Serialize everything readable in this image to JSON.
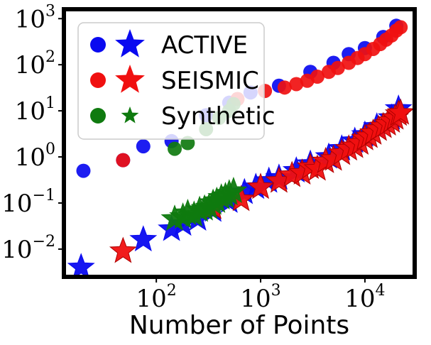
{
  "chart_data": {
    "type": "scatter",
    "xlabel": "Number of Points",
    "ylabel": "",
    "xscale": "log",
    "yscale": "log",
    "xlim": [
      13,
      30000
    ],
    "ylim": [
      0.0025,
      1600
    ],
    "x_ticks": [
      {
        "value": 100,
        "base": "10",
        "exp": "2"
      },
      {
        "value": 1000,
        "base": "10",
        "exp": "3"
      },
      {
        "value": 10000,
        "base": "10",
        "exp": "4"
      }
    ],
    "y_ticks": [
      {
        "value": 0.01,
        "base": "10",
        "exp": "−2"
      },
      {
        "value": 0.1,
        "base": "10",
        "exp": "−1"
      },
      {
        "value": 1,
        "base": "10",
        "exp": "0"
      },
      {
        "value": 10,
        "base": "10",
        "exp": "1"
      },
      {
        "value": 100,
        "base": "10",
        "exp": "2"
      },
      {
        "value": 1000,
        "base": "10",
        "exp": "3"
      }
    ],
    "legend": {
      "placement": "upper-left",
      "entries": [
        {
          "label": "ACTIVE",
          "color": "#0a0af0"
        },
        {
          "label": "SEISMIC",
          "color": "#f01010"
        },
        {
          "label": "Synthetic",
          "color": "#0f7a0f"
        }
      ]
    },
    "series": [
      {
        "name": "ACTIVE",
        "marker": "circle",
        "color": "#0a0af0",
        "points": [
          [
            20,
            0.5
          ],
          [
            48,
            0.85
          ],
          [
            75,
            1.7
          ],
          [
            140,
            2.2
          ],
          [
            300,
            8
          ],
          [
            500,
            15
          ],
          [
            800,
            25
          ],
          [
            1500,
            35
          ],
          [
            3000,
            70
          ],
          [
            5000,
            110
          ],
          [
            7000,
            170
          ],
          [
            10000,
            230
          ],
          [
            15000,
            400
          ],
          [
            20000,
            700
          ]
        ]
      },
      {
        "name": "ACTIVE",
        "marker": "star",
        "color": "#0a0af0",
        "points": [
          [
            19,
            0.004
          ],
          [
            75,
            0.016
          ],
          [
            140,
            0.027
          ],
          [
            180,
            0.035
          ],
          [
            250,
            0.045
          ],
          [
            350,
            0.07
          ],
          [
            500,
            0.11
          ],
          [
            700,
            0.17
          ],
          [
            900,
            0.22
          ],
          [
            1200,
            0.3
          ],
          [
            1500,
            0.35
          ],
          [
            2200,
            0.5
          ],
          [
            3000,
            0.7
          ],
          [
            4500,
            1.0
          ],
          [
            6000,
            1.5
          ],
          [
            8000,
            2.2
          ],
          [
            10000,
            3
          ],
          [
            13000,
            4.5
          ],
          [
            18000,
            7
          ],
          [
            21000,
            11
          ]
        ]
      },
      {
        "name": "SEISMIC",
        "marker": "circle",
        "color": "#f01010",
        "points": [
          [
            48,
            0.85
          ],
          [
            600,
            18
          ],
          [
            1100,
            27
          ],
          [
            1700,
            32
          ],
          [
            2200,
            38
          ],
          [
            2800,
            45
          ],
          [
            3500,
            55
          ],
          [
            4500,
            70
          ],
          [
            5500,
            85
          ],
          [
            7000,
            110
          ],
          [
            8500,
            140
          ],
          [
            10000,
            170
          ],
          [
            12000,
            220
          ],
          [
            14000,
            280
          ],
          [
            16000,
            350
          ],
          [
            18000,
            430
          ],
          [
            20000,
            550
          ],
          [
            22000,
            650
          ]
        ]
      },
      {
        "name": "SEISMIC",
        "marker": "star",
        "color": "#f01010",
        "points": [
          [
            48,
            0.009
          ],
          [
            350,
            0.08
          ],
          [
            650,
            0.12
          ],
          [
            1000,
            0.22
          ],
          [
            1500,
            0.3
          ],
          [
            2000,
            0.4
          ],
          [
            2500,
            0.45
          ],
          [
            3000,
            0.6
          ],
          [
            3500,
            0.55
          ],
          [
            4200,
            0.8
          ],
          [
            5000,
            0.9
          ],
          [
            6000,
            1.2
          ],
          [
            7000,
            1.5
          ],
          [
            8000,
            1.7
          ],
          [
            9000,
            2.0
          ],
          [
            10000,
            2.5
          ],
          [
            11000,
            2.8
          ],
          [
            12000,
            3.3
          ],
          [
            13500,
            4
          ],
          [
            15000,
            4.6
          ],
          [
            16500,
            5.2
          ],
          [
            18000,
            6
          ],
          [
            19500,
            7
          ],
          [
            21000,
            8.5
          ],
          [
            22000,
            9
          ]
        ]
      },
      {
        "name": "Synthetic",
        "marker": "circle",
        "color": "#0f7a0f",
        "points": [
          [
            150,
            1.5
          ],
          [
            200,
            2
          ],
          [
            300,
            4
          ],
          [
            400,
            7
          ],
          [
            500,
            10
          ],
          [
            550,
            14
          ]
        ]
      },
      {
        "name": "Synthetic",
        "marker": "star",
        "color": "#0f7a0f",
        "points": [
          [
            150,
            0.045
          ],
          [
            180,
            0.05
          ],
          [
            200,
            0.06
          ],
          [
            230,
            0.055
          ],
          [
            260,
            0.07
          ],
          [
            290,
            0.075
          ],
          [
            320,
            0.08
          ],
          [
            350,
            0.1
          ],
          [
            380,
            0.11
          ],
          [
            420,
            0.13
          ],
          [
            460,
            0.14
          ],
          [
            500,
            0.16
          ],
          [
            550,
            0.18
          ]
        ]
      }
    ]
  }
}
